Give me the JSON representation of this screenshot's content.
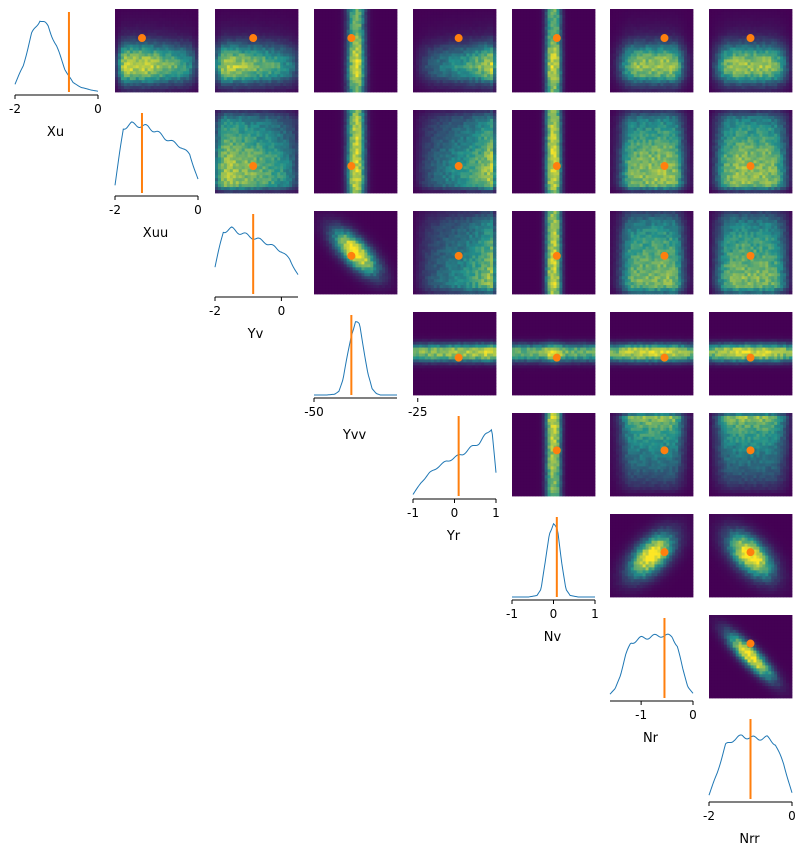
{
  "chart_data": {
    "type": "corner-pairplot",
    "parameters": [
      "Xu",
      "Xuu",
      "Yv",
      "Yvv",
      "Yr",
      "Nv",
      "Nr",
      "Nrr"
    ],
    "ranges": [
      [
        -2.0,
        0.0
      ],
      [
        -2.0,
        0.0
      ],
      [
        -2.0,
        0.5
      ],
      [
        -50.0,
        -30.0
      ],
      [
        -1.0,
        1.0
      ],
      [
        -1.0,
        1.0
      ],
      [
        -1.6,
        0.0
      ],
      [
        -2.0,
        0.0
      ]
    ],
    "tick_labels": [
      [
        {
          "v": -2,
          "t": "-2"
        },
        {
          "v": 0,
          "t": "0"
        }
      ],
      [
        {
          "v": -2,
          "t": "-2"
        },
        {
          "v": 0,
          "t": "0"
        }
      ],
      [
        {
          "v": -2,
          "t": "-2"
        },
        {
          "v": 0,
          "t": "0"
        }
      ],
      [
        {
          "v": -50,
          "t": "-50"
        },
        {
          "v": -25,
          "t": "-25"
        }
      ],
      [
        {
          "v": -1,
          "t": "-1"
        },
        {
          "v": 0,
          "t": "0"
        },
        {
          "v": 1,
          "t": "1"
        }
      ],
      [
        {
          "v": -1,
          "t": "-1"
        },
        {
          "v": 0,
          "t": "0"
        },
        {
          "v": 1,
          "t": "1"
        }
      ],
      [
        {
          "v": -1,
          "t": "-1"
        },
        {
          "v": 0,
          "t": "0"
        }
      ],
      [
        {
          "v": -2,
          "t": "-2"
        },
        {
          "v": 0,
          "t": "0"
        }
      ]
    ],
    "reference_values": [
      -0.7,
      -1.35,
      -0.85,
      -41.0,
      0.1,
      0.08,
      -0.55,
      -1.0
    ],
    "marginals": [
      {
        "x": [
          -2.0,
          -1.8,
          -1.6,
          -1.4,
          -1.2,
          -1.0,
          -0.8,
          -0.6,
          -0.4,
          -0.2,
          0.0
        ],
        "density": [
          0.1,
          0.35,
          0.75,
          0.95,
          0.85,
          0.6,
          0.3,
          0.12,
          0.06,
          0.03,
          0.01
        ]
      },
      {
        "x": [
          -2.0,
          -1.8,
          -1.6,
          -1.4,
          -1.2,
          -1.0,
          -0.8,
          -0.6,
          -0.4,
          -0.2,
          0.0
        ],
        "density": [
          0.1,
          0.85,
          0.9,
          0.88,
          0.86,
          0.8,
          0.72,
          0.66,
          0.6,
          0.5,
          0.18
        ]
      },
      {
        "x": [
          -2.0,
          -1.75,
          -1.5,
          -1.25,
          -1.0,
          -0.75,
          -0.5,
          -0.25,
          0.0,
          0.25,
          0.5
        ],
        "density": [
          0.35,
          0.82,
          0.85,
          0.8,
          0.76,
          0.72,
          0.68,
          0.62,
          0.56,
          0.45,
          0.25
        ]
      },
      {
        "x": [
          -50,
          -47,
          -45,
          -44,
          -43,
          -42,
          -41,
          -40,
          -39,
          -38,
          -37,
          -36,
          -35,
          -34,
          -32,
          -30
        ],
        "density": [
          0.0,
          0.0,
          0.01,
          0.05,
          0.2,
          0.5,
          0.8,
          0.95,
          0.9,
          0.6,
          0.28,
          0.08,
          0.02,
          0.0,
          0.0,
          0.0
        ]
      },
      {
        "x": [
          -1.0,
          -0.8,
          -0.6,
          -0.4,
          -0.2,
          0.0,
          0.2,
          0.4,
          0.6,
          0.8,
          0.9,
          1.0
        ],
        "density": [
          0.02,
          0.18,
          0.3,
          0.38,
          0.45,
          0.5,
          0.55,
          0.63,
          0.7,
          0.82,
          0.9,
          0.3
        ]
      },
      {
        "x": [
          -1.0,
          -0.6,
          -0.4,
          -0.3,
          -0.2,
          -0.1,
          0.0,
          0.1,
          0.2,
          0.3,
          0.4,
          0.6,
          1.0
        ],
        "density": [
          0.0,
          0.0,
          0.02,
          0.1,
          0.45,
          0.85,
          0.95,
          0.85,
          0.45,
          0.1,
          0.02,
          0.0,
          0.0
        ]
      },
      {
        "x": [
          -1.6,
          -1.5,
          -1.4,
          -1.3,
          -1.2,
          -1.0,
          -0.8,
          -0.6,
          -0.4,
          -0.3,
          -0.2,
          -0.1,
          0.0
        ],
        "density": [
          0.05,
          0.12,
          0.3,
          0.55,
          0.72,
          0.78,
          0.8,
          0.82,
          0.8,
          0.68,
          0.38,
          0.15,
          0.06
        ]
      },
      {
        "x": [
          -2.0,
          -1.8,
          -1.6,
          -1.4,
          -1.2,
          -1.0,
          -0.8,
          -0.6,
          -0.4,
          -0.2,
          0.0
        ],
        "density": [
          0.05,
          0.35,
          0.7,
          0.78,
          0.82,
          0.8,
          0.79,
          0.8,
          0.72,
          0.45,
          0.08
        ]
      }
    ],
    "colors": {
      "histogram": "#1f77b4",
      "reference": "#ff7f0e",
      "heatmap_low": "#440154",
      "heatmap_mid": "#21918c",
      "heatmap_high": "#fde725"
    },
    "grid": false,
    "legend": "none"
  }
}
